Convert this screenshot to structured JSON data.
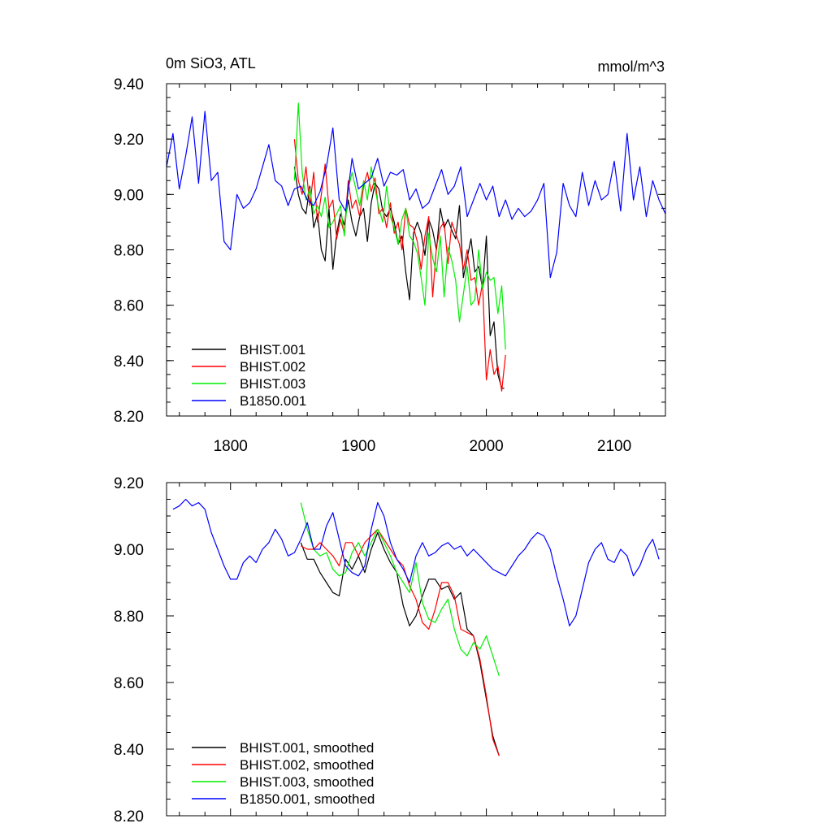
{
  "chart_data": [
    {
      "type": "line",
      "title_left": "0m SiO3, ATL",
      "title_right": "mmol/m^3",
      "xlim": [
        1750,
        2140
      ],
      "ylim": [
        8.2,
        9.4
      ],
      "y_ticks": [
        "8.20",
        "8.40",
        "8.60",
        "8.80",
        "9.00",
        "9.20",
        "9.40"
      ],
      "x_ticks": [
        "1800",
        "1900",
        "2000",
        "2100"
      ],
      "legend_position": "bottom-left",
      "series": [
        {
          "name": "BHIST.001",
          "color": "#000000",
          "x": [
            1850,
            1853,
            1856,
            1859,
            1862,
            1865,
            1868,
            1871,
            1874,
            1877,
            1880,
            1883,
            1886,
            1889,
            1892,
            1895,
            1898,
            1901,
            1904,
            1907,
            1910,
            1913,
            1916,
            1919,
            1922,
            1925,
            1928,
            1931,
            1934,
            1937,
            1940,
            1943,
            1946,
            1949,
            1952,
            1955,
            1958,
            1961,
            1964,
            1967,
            1970,
            1973,
            1976,
            1979,
            1982,
            1985,
            1988,
            1991,
            1994,
            1997,
            2000,
            2003,
            2006,
            2009,
            2012,
            2014
          ],
          "values": [
            9.1,
            9.0,
            8.95,
            8.93,
            9.03,
            8.88,
            8.93,
            8.8,
            8.76,
            8.95,
            8.73,
            8.86,
            8.93,
            8.89,
            8.98,
            8.9,
            8.85,
            8.92,
            8.95,
            8.83,
            8.97,
            9.04,
            9.02,
            8.94,
            8.92,
            8.95,
            8.9,
            8.82,
            8.85,
            8.72,
            8.62,
            8.86,
            8.9,
            8.86,
            8.78,
            8.91,
            8.87,
            8.8,
            8.95,
            8.88,
            8.91,
            8.87,
            8.84,
            8.96,
            8.7,
            8.77,
            8.84,
            8.72,
            8.74,
            8.66,
            8.85,
            8.49,
            8.54,
            8.35,
            8.3,
            8.3
          ]
        },
        {
          "name": "BHIST.002",
          "color": "#ff0000",
          "x": [
            1850,
            1853,
            1856,
            1859,
            1862,
            1865,
            1868,
            1871,
            1874,
            1877,
            1880,
            1883,
            1886,
            1889,
            1892,
            1895,
            1898,
            1901,
            1904,
            1907,
            1910,
            1913,
            1916,
            1919,
            1922,
            1925,
            1928,
            1931,
            1934,
            1937,
            1940,
            1943,
            1946,
            1949,
            1952,
            1955,
            1958,
            1961,
            1964,
            1967,
            1970,
            1973,
            1976,
            1979,
            1982,
            1985,
            1988,
            1991,
            1994,
            1997,
            2000,
            2003,
            2006,
            2009,
            2012,
            2015
          ],
          "values": [
            9.2,
            9.05,
            9.0,
            9.1,
            8.96,
            9.08,
            8.9,
            9.0,
            9.11,
            8.95,
            8.98,
            8.84,
            8.91,
            8.86,
            9.05,
            8.95,
            8.98,
            8.92,
            9.03,
            9.08,
            9.01,
            9.06,
            8.93,
            8.95,
            8.88,
            8.97,
            8.86,
            8.9,
            8.8,
            8.95,
            8.89,
            8.88,
            8.83,
            8.73,
            8.85,
            8.92,
            8.63,
            8.81,
            8.88,
            8.9,
            8.75,
            8.9,
            8.86,
            8.82,
            8.73,
            8.8,
            8.69,
            8.7,
            8.6,
            8.68,
            8.33,
            8.44,
            8.35,
            8.38,
            8.29,
            8.42
          ]
        },
        {
          "name": "BHIST.003",
          "color": "#00ee00",
          "x": [
            1850,
            1853,
            1856,
            1859,
            1862,
            1865,
            1868,
            1871,
            1874,
            1877,
            1880,
            1883,
            1886,
            1889,
            1892,
            1895,
            1898,
            1901,
            1904,
            1907,
            1910,
            1913,
            1916,
            1919,
            1922,
            1925,
            1928,
            1931,
            1934,
            1937,
            1940,
            1943,
            1946,
            1949,
            1952,
            1955,
            1958,
            1961,
            1964,
            1967,
            1970,
            1973,
            1976,
            1979,
            1982,
            1985,
            1988,
            1991,
            1994,
            1997,
            2000,
            2003,
            2006,
            2009,
            2012,
            2015
          ],
          "values": [
            9.05,
            9.33,
            9.08,
            8.98,
            9.02,
            8.93,
            8.96,
            8.92,
            8.99,
            8.88,
            8.9,
            8.93,
            8.96,
            8.85,
            9.02,
            9.08,
            9.02,
            8.96,
            9.05,
            8.98,
            9.1,
            9.02,
            8.95,
            8.9,
            9.03,
            8.92,
            8.88,
            8.82,
            8.91,
            8.95,
            8.85,
            8.83,
            8.79,
            8.7,
            8.6,
            8.86,
            8.77,
            8.72,
            8.85,
            8.63,
            8.81,
            8.76,
            8.69,
            8.54,
            8.64,
            8.74,
            8.6,
            8.62,
            8.8,
            8.66,
            8.72,
            8.69,
            8.7,
            8.57,
            8.67,
            8.44
          ]
        },
        {
          "name": "B1850.001",
          "color": "#0000ff",
          "x": [
            1750,
            1755,
            1760,
            1765,
            1770,
            1775,
            1780,
            1785,
            1790,
            1795,
            1800,
            1805,
            1810,
            1815,
            1820,
            1825,
            1830,
            1835,
            1840,
            1845,
            1850,
            1855,
            1860,
            1865,
            1870,
            1875,
            1880,
            1885,
            1890,
            1895,
            1900,
            1905,
            1910,
            1915,
            1920,
            1925,
            1930,
            1935,
            1940,
            1945,
            1950,
            1955,
            1960,
            1965,
            1970,
            1975,
            1980,
            1985,
            1990,
            1995,
            2000,
            2005,
            2010,
            2015,
            2020,
            2025,
            2030,
            2035,
            2040,
            2045,
            2050,
            2055,
            2060,
            2065,
            2070,
            2075,
            2080,
            2085,
            2090,
            2095,
            2100,
            2105,
            2110,
            2115,
            2120,
            2125,
            2130,
            2135,
            2140
          ],
          "values": [
            9.1,
            9.22,
            9.02,
            9.14,
            9.28,
            9.04,
            9.3,
            9.05,
            9.08,
            8.83,
            8.8,
            9.0,
            8.95,
            8.97,
            9.02,
            9.1,
            9.18,
            9.05,
            9.03,
            8.96,
            9.02,
            9.03,
            8.98,
            8.96,
            9.01,
            9.1,
            9.24,
            8.98,
            8.94,
            9.13,
            9.02,
            9.04,
            9.06,
            9.13,
            9.03,
            9.08,
            9.07,
            9.09,
            8.98,
            9.02,
            8.95,
            8.97,
            9.03,
            9.09,
            9.0,
            9.03,
            9.1,
            8.92,
            8.98,
            9.04,
            8.98,
            9.03,
            8.92,
            8.98,
            8.91,
            8.95,
            8.92,
            8.94,
            8.98,
            9.04,
            8.7,
            8.79,
            9.04,
            8.96,
            8.92,
            9.08,
            8.96,
            9.05,
            8.98,
            9.0,
            9.12,
            8.94,
            9.22,
            8.98,
            9.1,
            8.92,
            9.05,
            8.98,
            8.93
          ]
        }
      ]
    },
    {
      "type": "line",
      "xlim": [
        1750,
        2140
      ],
      "ylim": [
        8.2,
        9.2
      ],
      "y_ticks": [
        "8.20",
        "8.40",
        "8.60",
        "8.80",
        "9.00",
        "9.20"
      ],
      "legend_position": "bottom-left",
      "series": [
        {
          "name": "BHIST.001, smoothed",
          "color": "#000000",
          "x": [
            1855,
            1860,
            1865,
            1870,
            1875,
            1880,
            1885,
            1890,
            1895,
            1900,
            1905,
            1910,
            1915,
            1920,
            1925,
            1930,
            1935,
            1940,
            1945,
            1950,
            1955,
            1960,
            1965,
            1970,
            1975,
            1980,
            1985,
            1990,
            1995,
            2000,
            2005,
            2010
          ],
          "values": [
            9.02,
            8.97,
            8.97,
            8.93,
            8.9,
            8.87,
            8.86,
            8.97,
            8.94,
            8.98,
            8.93,
            9.0,
            9.05,
            9.0,
            8.96,
            8.93,
            8.83,
            8.77,
            8.8,
            8.86,
            8.91,
            8.91,
            8.88,
            8.89,
            8.85,
            8.87,
            8.76,
            8.74,
            8.66,
            8.55,
            8.44,
            8.38
          ]
        },
        {
          "name": "BHIST.002, smoothed",
          "color": "#ff0000",
          "x": [
            1855,
            1860,
            1865,
            1870,
            1875,
            1880,
            1885,
            1890,
            1895,
            1900,
            1905,
            1910,
            1915,
            1920,
            1925,
            1930,
            1935,
            1940,
            1945,
            1950,
            1955,
            1960,
            1965,
            1970,
            1975,
            1980,
            1985,
            1990,
            1995,
            2000,
            2005,
            2010
          ],
          "values": [
            9.01,
            9.0,
            9.0,
            9.02,
            9.0,
            8.98,
            8.95,
            9.02,
            9.02,
            8.98,
            9.02,
            9.04,
            9.06,
            9.03,
            9.0,
            8.97,
            8.95,
            8.89,
            8.85,
            8.78,
            8.76,
            8.82,
            8.9,
            8.9,
            8.86,
            8.76,
            8.75,
            8.74,
            8.67,
            8.56,
            8.43,
            8.38
          ]
        },
        {
          "name": "BHIST.003, smoothed",
          "color": "#00ee00",
          "x": [
            1855,
            1860,
            1865,
            1870,
            1875,
            1880,
            1885,
            1890,
            1895,
            1900,
            1905,
            1910,
            1915,
            1920,
            1925,
            1930,
            1935,
            1940,
            1945,
            1950,
            1955,
            1960,
            1965,
            1970,
            1975,
            1980,
            1985,
            1990,
            1995,
            2000,
            2005,
            2010
          ],
          "values": [
            9.14,
            9.06,
            9.0,
            8.98,
            8.99,
            8.94,
            8.92,
            8.93,
            8.99,
            9.02,
            8.98,
            9.02,
            9.06,
            9.02,
            8.98,
            8.93,
            8.9,
            8.87,
            8.96,
            8.84,
            8.79,
            8.78,
            8.82,
            8.85,
            8.76,
            8.7,
            8.68,
            8.72,
            8.7,
            8.74,
            8.68,
            8.62
          ]
        },
        {
          "name": "B1850.001, smoothed",
          "color": "#0000ff",
          "x": [
            1755,
            1760,
            1765,
            1770,
            1775,
            1780,
            1785,
            1790,
            1795,
            1800,
            1805,
            1810,
            1815,
            1820,
            1825,
            1830,
            1835,
            1840,
            1845,
            1850,
            1855,
            1860,
            1865,
            1870,
            1875,
            1880,
            1885,
            1890,
            1895,
            1900,
            1905,
            1910,
            1915,
            1920,
            1925,
            1930,
            1935,
            1940,
            1945,
            1950,
            1955,
            1960,
            1965,
            1970,
            1975,
            1980,
            1985,
            1990,
            1995,
            2000,
            2005,
            2010,
            2015,
            2020,
            2025,
            2030,
            2035,
            2040,
            2045,
            2050,
            2055,
            2060,
            2065,
            2070,
            2075,
            2080,
            2085,
            2090,
            2095,
            2100,
            2105,
            2110,
            2115,
            2120,
            2125,
            2130,
            2135
          ],
          "values": [
            9.12,
            9.13,
            9.15,
            9.13,
            9.14,
            9.12,
            9.05,
            9.0,
            8.95,
            8.91,
            8.91,
            8.96,
            8.98,
            8.96,
            9.0,
            9.02,
            9.06,
            9.03,
            8.98,
            8.99,
            9.03,
            9.08,
            9.0,
            9.0,
            9.07,
            9.11,
            9.03,
            8.95,
            8.93,
            8.92,
            8.95,
            9.06,
            9.14,
            9.1,
            9.02,
            8.97,
            8.94,
            8.9,
            8.98,
            9.02,
            8.98,
            8.99,
            9.01,
            9.02,
            9.0,
            9.01,
            8.98,
            9.0,
            8.98,
            8.96,
            8.94,
            8.93,
            8.92,
            8.95,
            8.98,
            9.0,
            9.03,
            9.05,
            9.04,
            9.0,
            8.92,
            8.85,
            8.77,
            8.8,
            8.88,
            8.96,
            9.0,
            9.02,
            8.97,
            8.96,
            9.0,
            8.98,
            8.92,
            8.95,
            9.0,
            9.03,
            8.97
          ]
        }
      ]
    }
  ]
}
